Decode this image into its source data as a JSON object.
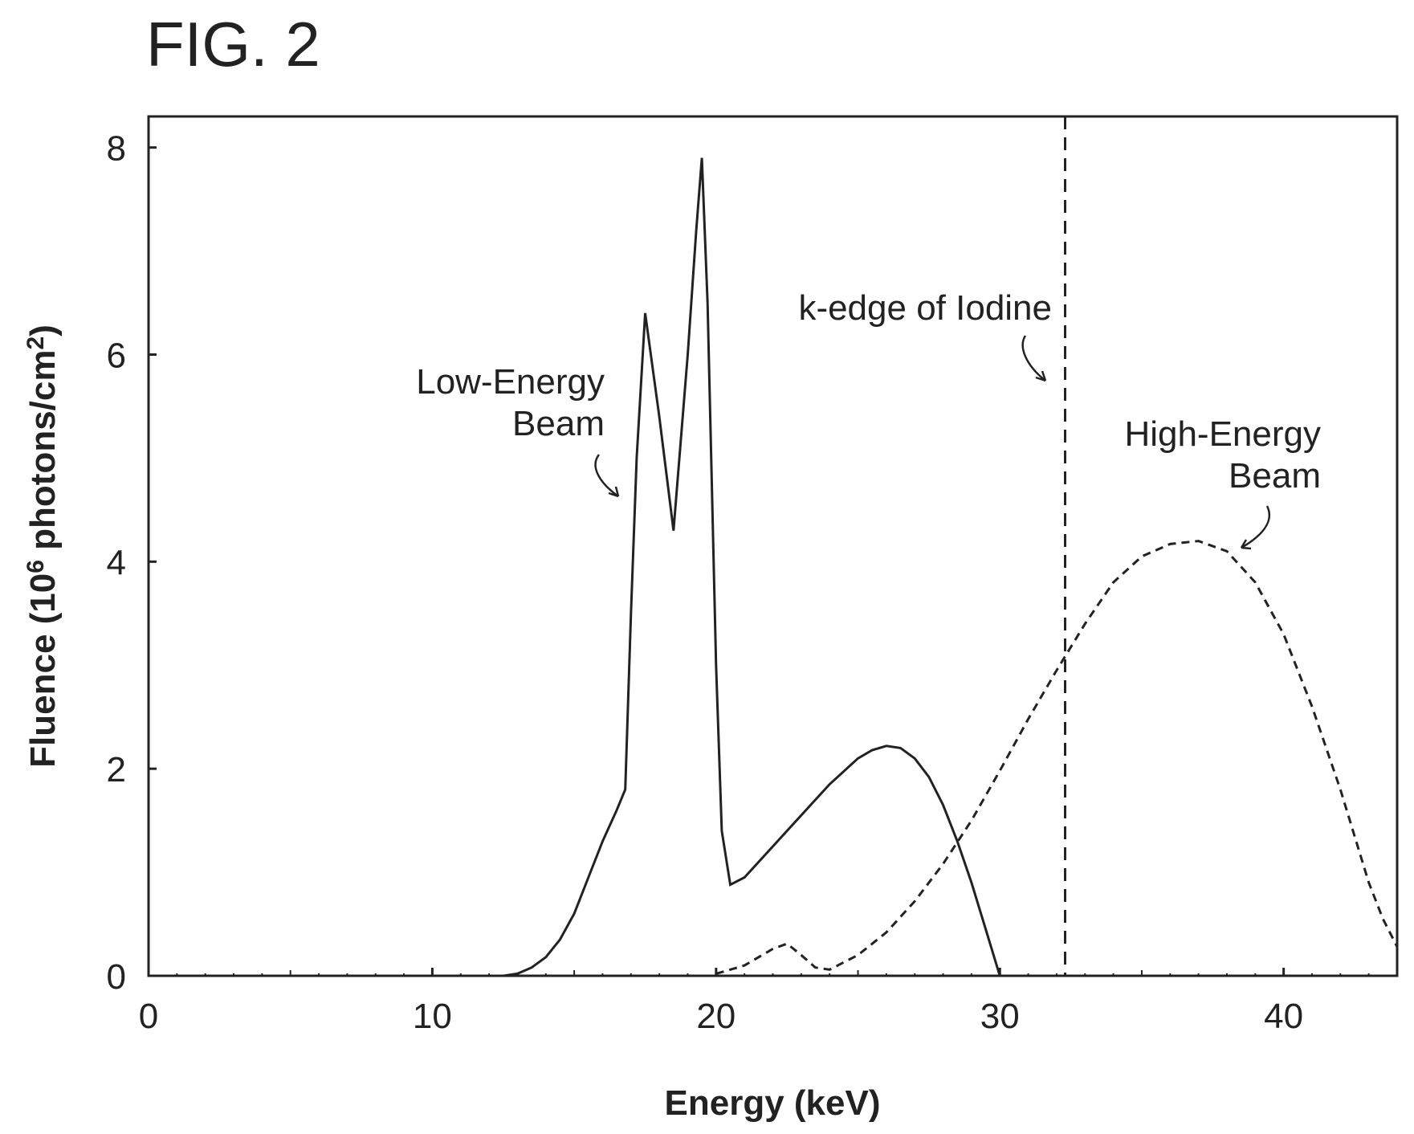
{
  "figure_title": "FIG. 2",
  "chart_data": {
    "type": "line",
    "xlabel": "Energy (keV)",
    "ylabel_parts": [
      "Fluence (10",
      "6",
      " photons/cm",
      "2",
      ")"
    ],
    "xlim": [
      0,
      44
    ],
    "ylim": [
      0,
      8.3
    ],
    "x_ticks": [
      0,
      10,
      20,
      30,
      40
    ],
    "y_ticks": [
      0,
      2,
      4,
      6,
      8
    ],
    "x_tick_labels": [
      "0",
      "10",
      "20",
      "30",
      "40"
    ],
    "y_tick_labels": [
      "0",
      "2",
      "4",
      "6",
      "8"
    ],
    "grid": false,
    "legend": "none",
    "series": [
      {
        "style": "solid",
        "color": "#222222",
        "x": [
          0,
          12.5,
          13.0,
          13.5,
          14.0,
          14.5,
          15.0,
          15.5,
          16.0,
          16.5,
          16.8,
          17.0,
          17.2,
          17.5,
          18.0,
          18.5,
          19.0,
          19.3,
          19.5,
          19.7,
          20.0,
          20.2,
          20.5,
          21.0,
          22.0,
          23.0,
          24.0,
          25.0,
          25.5,
          26.0,
          26.5,
          27.0,
          27.5,
          28.0,
          28.5,
          29.0,
          29.5,
          30.0
        ],
        "y": [
          0,
          0,
          0.02,
          0.08,
          0.18,
          0.35,
          0.6,
          0.95,
          1.3,
          1.6,
          1.8,
          3.5,
          5.0,
          6.4,
          5.4,
          4.3,
          6.0,
          7.2,
          7.9,
          6.5,
          3.0,
          1.4,
          0.88,
          0.95,
          1.25,
          1.55,
          1.85,
          2.1,
          2.18,
          2.22,
          2.2,
          2.1,
          1.92,
          1.65,
          1.3,
          0.9,
          0.45,
          0
        ]
      },
      {
        "style": "dashed",
        "color": "#222222",
        "x": [
          20.0,
          20.5,
          21.0,
          21.5,
          22.0,
          22.5,
          23.0,
          23.5,
          24.0,
          25.0,
          26.0,
          27.0,
          28.0,
          29.0,
          30.0,
          31.0,
          32.0,
          33.0,
          34.0,
          35.0,
          36.0,
          37.0,
          38.0,
          39.0,
          40.0,
          41.0,
          42.0,
          43.0,
          43.5,
          44.0
        ],
        "y": [
          0.02,
          0.06,
          0.1,
          0.18,
          0.26,
          0.31,
          0.2,
          0.08,
          0.06,
          0.2,
          0.42,
          0.72,
          1.08,
          1.5,
          1.98,
          2.48,
          2.95,
          3.4,
          3.8,
          4.05,
          4.17,
          4.2,
          4.1,
          3.8,
          3.3,
          2.6,
          1.8,
          0.9,
          0.55,
          0.28
        ]
      }
    ],
    "reference_lines": [
      {
        "orientation": "vertical",
        "x": 32.3,
        "style": "dashed"
      }
    ],
    "annotations": [
      {
        "lines": [
          "Low-Energy",
          "Beam"
        ]
      },
      {
        "lines": [
          "k-edge of Iodine"
        ]
      },
      {
        "lines": [
          "High-Energy",
          "Beam"
        ]
      }
    ]
  }
}
